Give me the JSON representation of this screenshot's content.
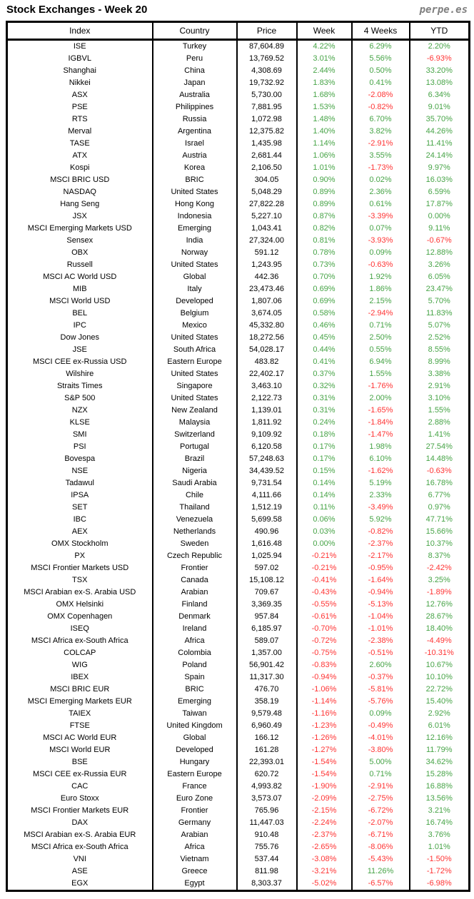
{
  "header": {
    "title": "Stock Exchanges - Week 20",
    "brand": "perpe.es"
  },
  "colors": {
    "positive": "#47a447",
    "negative": "#ff3434",
    "text": "#000000",
    "brand_gray": "#7f7f7f",
    "border": "#000000"
  },
  "chart_data": {
    "type": "table",
    "title": "Stock Exchanges - Week 20",
    "columns": [
      "Index",
      "Country",
      "Price",
      "Week",
      "4 Weeks",
      "YTD"
    ],
    "rows": [
      [
        "ISE",
        "Turkey",
        "87,604.89",
        "4.22%",
        "6.29%",
        "2.20%"
      ],
      [
        "IGBVL",
        "Peru",
        "13,769.52",
        "3.01%",
        "5.56%",
        "-6.93%"
      ],
      [
        "Shanghai",
        "China",
        "4,308.69",
        "2.44%",
        "0.50%",
        "33.20%"
      ],
      [
        "Nikkei",
        "Japan",
        "19,732.92",
        "1.83%",
        "0.41%",
        "13.08%"
      ],
      [
        "ASX",
        "Australia",
        "5,730.00",
        "1.68%",
        "-2.08%",
        "6.34%"
      ],
      [
        "PSE",
        "Philippines",
        "7,881.95",
        "1.53%",
        "-0.82%",
        "9.01%"
      ],
      [
        "RTS",
        "Russia",
        "1,072.98",
        "1.48%",
        "6.70%",
        "35.70%"
      ],
      [
        "Merval",
        "Argentina",
        "12,375.82",
        "1.40%",
        "3.82%",
        "44.26%"
      ],
      [
        "TASE",
        "Israel",
        "1,435.98",
        "1.14%",
        "-2.91%",
        "11.41%"
      ],
      [
        "ATX",
        "Austria",
        "2,681.44",
        "1.06%",
        "3.55%",
        "24.14%"
      ],
      [
        "Kospi",
        "Korea",
        "2,106.50",
        "1.01%",
        "-1.73%",
        "9.97%"
      ],
      [
        "MSCI BRIC USD",
        "BRIC",
        "304.05",
        "0.90%",
        "0.02%",
        "16.03%"
      ],
      [
        "NASDAQ",
        "United States",
        "5,048.29",
        "0.89%",
        "2.36%",
        "6.59%"
      ],
      [
        "Hang Seng",
        "Hong Kong",
        "27,822.28",
        "0.89%",
        "0.61%",
        "17.87%"
      ],
      [
        "JSX",
        "Indonesia",
        "5,227.10",
        "0.87%",
        "-3.39%",
        "0.00%"
      ],
      [
        "MSCI Emerging Markets USD",
        "Emerging",
        "1,043.41",
        "0.82%",
        "0.07%",
        "9.11%"
      ],
      [
        "Sensex",
        "India",
        "27,324.00",
        "0.81%",
        "-3.93%",
        "-0.67%"
      ],
      [
        "OBX",
        "Norway",
        "591.12",
        "0.78%",
        "0.09%",
        "12.88%"
      ],
      [
        "Russell",
        "United States",
        "1,243.95",
        "0.73%",
        "-0.63%",
        "3.26%"
      ],
      [
        "MSCI AC World USD",
        "Global",
        "442.36",
        "0.70%",
        "1.92%",
        "6.05%"
      ],
      [
        "MIB",
        "Italy",
        "23,473.46",
        "0.69%",
        "1.86%",
        "23.47%"
      ],
      [
        "MSCI World USD",
        "Developed",
        "1,807.06",
        "0.69%",
        "2.15%",
        "5.70%"
      ],
      [
        "BEL",
        "Belgium",
        "3,674.05",
        "0.58%",
        "-2.94%",
        "11.83%"
      ],
      [
        "IPC",
        "Mexico",
        "45,332.80",
        "0.46%",
        "0.71%",
        "5.07%"
      ],
      [
        "Dow Jones",
        "United States",
        "18,272.56",
        "0.45%",
        "2.50%",
        "2.52%"
      ],
      [
        "JSE",
        "South Africa",
        "54,028.17",
        "0.44%",
        "0.55%",
        "8.55%"
      ],
      [
        "MSCI CEE ex-Russia USD",
        "Eastern Europe",
        "483.82",
        "0.41%",
        "6.94%",
        "8.99%"
      ],
      [
        "Wilshire",
        "United States",
        "22,402.17",
        "0.37%",
        "1.55%",
        "3.38%"
      ],
      [
        "Straits Times",
        "Singapore",
        "3,463.10",
        "0.32%",
        "-1.76%",
        "2.91%"
      ],
      [
        "S&P 500",
        "United States",
        "2,122.73",
        "0.31%",
        "2.00%",
        "3.10%"
      ],
      [
        "NZX",
        "New Zealand",
        "1,139.01",
        "0.31%",
        "-1.65%",
        "1.55%"
      ],
      [
        "KLSE",
        "Malaysia",
        "1,811.92",
        "0.24%",
        "-1.84%",
        "2.88%"
      ],
      [
        "SMI",
        "Switzerland",
        "9,109.92",
        "0.18%",
        "-1.47%",
        "1.41%"
      ],
      [
        "PSI",
        "Portugal",
        "6,120.58",
        "0.17%",
        "1.98%",
        "27.54%"
      ],
      [
        "Bovespa",
        "Brazil",
        "57,248.63",
        "0.17%",
        "6.10%",
        "14.48%"
      ],
      [
        "NSE",
        "Nigeria",
        "34,439.52",
        "0.15%",
        "-1.62%",
        "-0.63%"
      ],
      [
        "Tadawul",
        "Saudi Arabia",
        "9,731.54",
        "0.14%",
        "5.19%",
        "16.78%"
      ],
      [
        "IPSA",
        "Chile",
        "4,111.66",
        "0.14%",
        "2.33%",
        "6.77%"
      ],
      [
        "SET",
        "Thailand",
        "1,512.19",
        "0.11%",
        "-3.49%",
        "0.97%"
      ],
      [
        "IBC",
        "Venezuela",
        "5,699.58",
        "0.06%",
        "5.92%",
        "47.71%"
      ],
      [
        "AEX",
        "Netherlands",
        "490.96",
        "0.03%",
        "-0.82%",
        "15.66%"
      ],
      [
        "OMX Stockholm",
        "Sweden",
        "1,616.48",
        "0.00%",
        "-2.37%",
        "10.37%"
      ],
      [
        "PX",
        "Czech Republic",
        "1,025.94",
        "-0.21%",
        "-2.17%",
        "8.37%"
      ],
      [
        "MSCI Frontier Markets USD",
        "Frontier",
        "597.02",
        "-0.21%",
        "-0.95%",
        "-2.42%"
      ],
      [
        "TSX",
        "Canada",
        "15,108.12",
        "-0.41%",
        "-1.64%",
        "3.25%"
      ],
      [
        "MSCI Arabian ex-S. Arabia USD",
        "Arabian",
        "709.67",
        "-0.43%",
        "-0.94%",
        "-1.89%"
      ],
      [
        "OMX Helsinki",
        "Finland",
        "3,369.35",
        "-0.55%",
        "-5.13%",
        "12.76%"
      ],
      [
        "OMX Copenhagen",
        "Denmark",
        "957.84",
        "-0.61%",
        "-1.04%",
        "28.67%"
      ],
      [
        "ISEQ",
        "Ireland",
        "6,185.97",
        "-0.70%",
        "-1.01%",
        "18.40%"
      ],
      [
        "MSCI Africa ex-South Africa",
        "Africa",
        "589.07",
        "-0.72%",
        "-2.38%",
        "-4.49%"
      ],
      [
        "COLCAP",
        "Colombia",
        "1,357.00",
        "-0.75%",
        "-0.51%",
        "-10.31%"
      ],
      [
        "WIG",
        "Poland",
        "56,901.42",
        "-0.83%",
        "2.60%",
        "10.67%"
      ],
      [
        "IBEX",
        "Spain",
        "11,317.30",
        "-0.94%",
        "-0.37%",
        "10.10%"
      ],
      [
        "MSCI BRIC EUR",
        "BRIC",
        "476.70",
        "-1.06%",
        "-5.81%",
        "22.72%"
      ],
      [
        "MSCI Emerging Markets EUR",
        "Emerging",
        "358.19",
        "-1.14%",
        "-5.76%",
        "15.40%"
      ],
      [
        "TAIEX",
        "Taiwan",
        "9,579.48",
        "-1.16%",
        "0.09%",
        "2.92%"
      ],
      [
        "FTSE",
        "United Kingdom",
        "6,960.49",
        "-1.23%",
        "-0.49%",
        "6.01%"
      ],
      [
        "MSCI AC World EUR",
        "Global",
        "166.12",
        "-1.26%",
        "-4.01%",
        "12.16%"
      ],
      [
        "MSCI World EUR",
        "Developed",
        "161.28",
        "-1.27%",
        "-3.80%",
        "11.79%"
      ],
      [
        "BSE",
        "Hungary",
        "22,393.01",
        "-1.54%",
        "5.00%",
        "34.62%"
      ],
      [
        "MSCI CEE ex-Russia EUR",
        "Eastern Europe",
        "620.72",
        "-1.54%",
        "0.71%",
        "15.28%"
      ],
      [
        "CAC",
        "France",
        "4,993.82",
        "-1.90%",
        "-2.91%",
        "16.88%"
      ],
      [
        "Euro Stoxx",
        "Euro Zone",
        "3,573.07",
        "-2.09%",
        "-2.75%",
        "13.56%"
      ],
      [
        "MSCI Frontier Markets EUR",
        "Frontier",
        "765.96",
        "-2.15%",
        "-6.72%",
        "3.21%"
      ],
      [
        "DAX",
        "Germany",
        "11,447.03",
        "-2.24%",
        "-2.07%",
        "16.74%"
      ],
      [
        "MSCI Arabian ex-S. Arabia EUR",
        "Arabian",
        "910.48",
        "-2.37%",
        "-6.71%",
        "3.76%"
      ],
      [
        "MSCI Africa ex-South Africa",
        "Africa",
        "755.76",
        "-2.65%",
        "-8.06%",
        "1.01%"
      ],
      [
        "VNI",
        "Vietnam",
        "537.44",
        "-3.08%",
        "-5.43%",
        "-1.50%"
      ],
      [
        "ASE",
        "Greece",
        "811.98",
        "-3.21%",
        "11.26%",
        "-1.72%"
      ],
      [
        "EGX",
        "Egypt",
        "8,303.37",
        "-5.02%",
        "-6.57%",
        "-6.98%"
      ]
    ],
    "value_color_rule": "percent columns: negative values red, zero or positive values green",
    "layout_hints": {
      "grid": "vertical column separators only, no horizontal row lines",
      "header_position": "top row, centered labels",
      "alignment": "all cells centered"
    }
  }
}
